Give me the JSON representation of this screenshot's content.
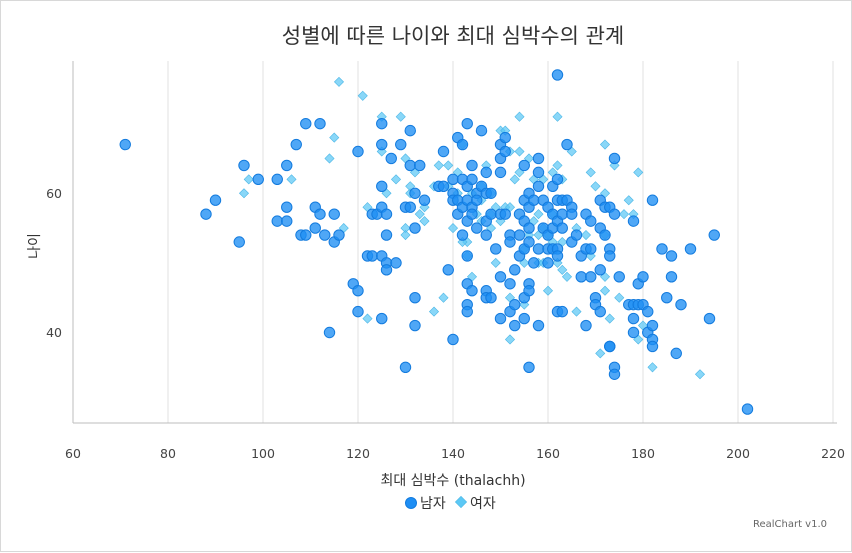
{
  "chart_data": {
    "type": "scatter",
    "title": "성별에 따른 나이와 최대 심박수의 관계",
    "xlabel": "최대 심박수 (thalachh)",
    "ylabel": "나이",
    "xlim": [
      60,
      220
    ],
    "ylim": [
      27,
      79
    ],
    "x_ticks": [
      60,
      80,
      100,
      120,
      140,
      160,
      180,
      200,
      220
    ],
    "y_ticks": [
      40,
      60
    ],
    "grid": "vertical",
    "legend": {
      "position": "bottom",
      "entries": [
        "남자",
        "여자"
      ]
    },
    "credit": "RealChart v1.0",
    "series": [
      {
        "name": "남자",
        "marker": "circle",
        "color": "#1e8ef4",
        "points": [
          [
            71,
            67
          ],
          [
            88,
            57
          ],
          [
            90,
            59
          ],
          [
            95,
            53
          ],
          [
            96,
            64
          ],
          [
            99,
            62
          ],
          [
            103,
            62
          ],
          [
            103,
            56
          ],
          [
            105,
            64
          ],
          [
            105,
            58
          ],
          [
            105,
            56
          ],
          [
            107,
            67
          ],
          [
            108,
            54
          ],
          [
            109,
            70
          ],
          [
            109,
            54
          ],
          [
            111,
            55
          ],
          [
            111,
            58
          ],
          [
            112,
            70
          ],
          [
            112,
            57
          ],
          [
            113,
            54
          ],
          [
            114,
            40
          ],
          [
            115,
            57
          ],
          [
            115,
            53
          ],
          [
            116,
            54
          ],
          [
            119,
            47
          ],
          [
            120,
            66
          ],
          [
            120,
            46
          ],
          [
            120,
            43
          ],
          [
            122,
            51
          ],
          [
            123,
            51
          ],
          [
            123,
            57
          ],
          [
            124,
            57
          ],
          [
            125,
            70
          ],
          [
            125,
            67
          ],
          [
            125,
            61
          ],
          [
            125,
            58
          ],
          [
            125,
            51
          ],
          [
            125,
            42
          ],
          [
            126,
            57
          ],
          [
            126,
            54
          ],
          [
            126,
            50
          ],
          [
            126,
            49
          ],
          [
            127,
            65
          ],
          [
            128,
            50
          ],
          [
            129,
            67
          ],
          [
            130,
            58
          ],
          [
            130,
            35
          ],
          [
            131,
            69
          ],
          [
            131,
            64
          ],
          [
            131,
            58
          ],
          [
            132,
            60
          ],
          [
            132,
            55
          ],
          [
            132,
            45
          ],
          [
            132,
            41
          ],
          [
            133,
            64
          ],
          [
            134,
            59
          ],
          [
            137,
            61
          ],
          [
            138,
            66
          ],
          [
            138,
            61
          ],
          [
            139,
            49
          ],
          [
            140,
            62
          ],
          [
            140,
            60
          ],
          [
            140,
            59
          ],
          [
            140,
            39
          ],
          [
            141,
            68
          ],
          [
            141,
            59
          ],
          [
            141,
            57
          ],
          [
            142,
            67
          ],
          [
            142,
            62
          ],
          [
            142,
            58
          ],
          [
            142,
            54
          ],
          [
            143,
            70
          ],
          [
            143,
            61
          ],
          [
            143,
            59
          ],
          [
            143,
            56
          ],
          [
            143,
            51
          ],
          [
            143,
            47
          ],
          [
            143,
            44
          ],
          [
            143,
            43
          ],
          [
            144,
            64
          ],
          [
            144,
            62
          ],
          [
            144,
            58
          ],
          [
            144,
            57
          ],
          [
            144,
            46
          ],
          [
            145,
            60
          ],
          [
            145,
            59
          ],
          [
            145,
            55
          ],
          [
            146,
            69
          ],
          [
            146,
            61
          ],
          [
            147,
            63
          ],
          [
            147,
            60
          ],
          [
            147,
            56
          ],
          [
            147,
            54
          ],
          [
            147,
            46
          ],
          [
            147,
            45
          ],
          [
            148,
            60
          ],
          [
            148,
            57
          ],
          [
            148,
            45
          ],
          [
            149,
            52
          ],
          [
            150,
            67
          ],
          [
            150,
            65
          ],
          [
            150,
            63
          ],
          [
            150,
            57
          ],
          [
            150,
            48
          ],
          [
            150,
            42
          ],
          [
            151,
            68
          ],
          [
            151,
            66
          ],
          [
            151,
            57
          ],
          [
            152,
            54
          ],
          [
            152,
            53
          ],
          [
            152,
            47
          ],
          [
            152,
            43
          ],
          [
            153,
            49
          ],
          [
            153,
            44
          ],
          [
            153,
            41
          ],
          [
            154,
            57
          ],
          [
            154,
            54
          ],
          [
            154,
            51
          ],
          [
            155,
            64
          ],
          [
            155,
            59
          ],
          [
            155,
            56
          ],
          [
            155,
            52
          ],
          [
            155,
            45
          ],
          [
            155,
            42
          ],
          [
            156,
            60
          ],
          [
            156,
            58
          ],
          [
            156,
            55
          ],
          [
            156,
            53
          ],
          [
            156,
            47
          ],
          [
            156,
            46
          ],
          [
            156,
            35
          ],
          [
            157,
            59
          ],
          [
            157,
            50
          ],
          [
            158,
            65
          ],
          [
            158,
            63
          ],
          [
            158,
            61
          ],
          [
            158,
            52
          ],
          [
            158,
            41
          ],
          [
            159,
            59
          ],
          [
            159,
            55
          ],
          [
            160,
            58
          ],
          [
            160,
            54
          ],
          [
            160,
            52
          ],
          [
            160,
            50
          ],
          [
            161,
            61
          ],
          [
            161,
            57
          ],
          [
            161,
            55
          ],
          [
            161,
            52
          ],
          [
            162,
            77
          ],
          [
            162,
            62
          ],
          [
            162,
            59
          ],
          [
            162,
            56
          ],
          [
            162,
            52
          ],
          [
            162,
            51
          ],
          [
            162,
            43
          ],
          [
            163,
            59
          ],
          [
            163,
            57
          ],
          [
            163,
            55
          ],
          [
            163,
            43
          ],
          [
            164,
            67
          ],
          [
            164,
            59
          ],
          [
            165,
            58
          ],
          [
            165,
            57
          ],
          [
            165,
            53
          ],
          [
            166,
            54
          ],
          [
            167,
            51
          ],
          [
            167,
            48
          ],
          [
            168,
            57
          ],
          [
            168,
            52
          ],
          [
            168,
            41
          ],
          [
            169,
            56
          ],
          [
            169,
            52
          ],
          [
            169,
            48
          ],
          [
            170,
            45
          ],
          [
            170,
            44
          ],
          [
            171,
            59
          ],
          [
            171,
            55
          ],
          [
            171,
            49
          ],
          [
            171,
            43
          ],
          [
            172,
            58
          ],
          [
            172,
            54
          ],
          [
            173,
            58
          ],
          [
            173,
            52
          ],
          [
            173,
            51
          ],
          [
            173,
            38
          ],
          [
            173,
            38
          ],
          [
            174,
            65
          ],
          [
            174,
            57
          ],
          [
            174,
            35
          ],
          [
            174,
            34
          ],
          [
            175,
            48
          ],
          [
            177,
            44
          ],
          [
            178,
            56
          ],
          [
            178,
            44
          ],
          [
            178,
            42
          ],
          [
            178,
            40
          ],
          [
            179,
            47
          ],
          [
            179,
            44
          ],
          [
            180,
            48
          ],
          [
            180,
            44
          ],
          [
            181,
            43
          ],
          [
            181,
            40
          ],
          [
            182,
            59
          ],
          [
            182,
            41
          ],
          [
            182,
            39
          ],
          [
            182,
            38
          ],
          [
            184,
            52
          ],
          [
            185,
            45
          ],
          [
            186,
            51
          ],
          [
            186,
            48
          ],
          [
            187,
            37
          ],
          [
            188,
            44
          ],
          [
            190,
            52
          ],
          [
            194,
            42
          ],
          [
            195,
            54
          ],
          [
            202,
            29
          ]
        ]
      },
      {
        "name": "여자",
        "marker": "diamond",
        "color": "#5cc8f5",
        "points": [
          [
            96,
            60
          ],
          [
            97,
            62
          ],
          [
            106,
            62
          ],
          [
            114,
            65
          ],
          [
            115,
            68
          ],
          [
            116,
            76
          ],
          [
            117,
            55
          ],
          [
            121,
            74
          ],
          [
            122,
            58
          ],
          [
            122,
            42
          ],
          [
            125,
            71
          ],
          [
            125,
            66
          ],
          [
            126,
            60
          ],
          [
            128,
            62
          ],
          [
            129,
            71
          ],
          [
            130,
            65
          ],
          [
            130,
            55
          ],
          [
            131,
            60
          ],
          [
            132,
            63
          ],
          [
            133,
            57
          ],
          [
            134,
            56
          ],
          [
            136,
            43
          ],
          [
            137,
            64
          ],
          [
            138,
            45
          ],
          [
            139,
            64
          ],
          [
            139,
            61
          ],
          [
            141,
            60
          ],
          [
            142,
            67
          ],
          [
            143,
            51
          ],
          [
            143,
            53
          ],
          [
            144,
            60
          ],
          [
            145,
            57
          ],
          [
            146,
            56
          ],
          [
            146,
            61
          ],
          [
            148,
            57
          ],
          [
            148,
            60
          ],
          [
            149,
            58
          ],
          [
            149,
            50
          ],
          [
            150,
            56
          ],
          [
            150,
            69
          ],
          [
            151,
            58
          ],
          [
            151,
            69
          ],
          [
            152,
            66
          ],
          [
            152,
            58
          ],
          [
            152,
            45
          ],
          [
            152,
            39
          ],
          [
            153,
            62
          ],
          [
            154,
            63
          ],
          [
            154,
            66
          ],
          [
            154,
            71
          ],
          [
            155,
            52
          ],
          [
            155,
            50
          ],
          [
            155,
            44
          ],
          [
            156,
            65
          ],
          [
            156,
            54
          ],
          [
            157,
            62
          ],
          [
            157,
            56
          ],
          [
            158,
            57
          ],
          [
            158,
            54
          ],
          [
            158,
            50
          ],
          [
            159,
            62
          ],
          [
            159,
            55
          ],
          [
            159,
            50
          ],
          [
            160,
            46
          ],
          [
            160,
            54
          ],
          [
            161,
            63
          ],
          [
            161,
            57
          ],
          [
            161,
            53
          ],
          [
            162,
            71
          ],
          [
            162,
            64
          ],
          [
            162,
            50
          ],
          [
            163,
            49
          ],
          [
            163,
            62
          ],
          [
            163,
            53
          ],
          [
            164,
            48
          ],
          [
            165,
            66
          ],
          [
            166,
            43
          ],
          [
            166,
            55
          ],
          [
            168,
            54
          ],
          [
            169,
            51
          ],
          [
            169,
            63
          ],
          [
            170,
            61
          ],
          [
            171,
            37
          ],
          [
            172,
            48
          ],
          [
            172,
            54
          ],
          [
            172,
            46
          ],
          [
            172,
            67
          ],
          [
            172,
            60
          ],
          [
            173,
            42
          ],
          [
            174,
            64
          ],
          [
            175,
            45
          ],
          [
            176,
            57
          ],
          [
            177,
            59
          ],
          [
            178,
            57
          ],
          [
            179,
            39
          ],
          [
            179,
            63
          ],
          [
            180,
            41
          ],
          [
            182,
            35
          ],
          [
            192,
            34
          ],
          [
            130,
            54
          ],
          [
            131,
            61
          ],
          [
            134,
            58
          ],
          [
            136,
            61
          ],
          [
            140,
            55
          ],
          [
            141,
            63
          ],
          [
            142,
            53
          ],
          [
            144,
            48
          ],
          [
            146,
            59
          ],
          [
            147,
            64
          ],
          [
            148,
            55
          ]
        ]
      }
    ]
  }
}
